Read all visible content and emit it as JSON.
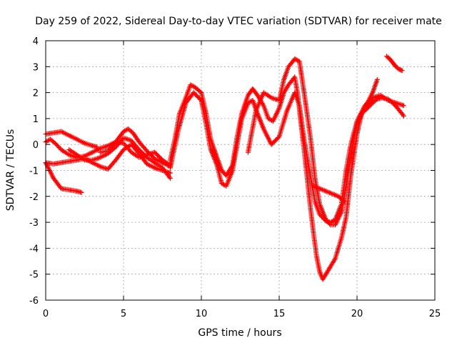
{
  "chart_data": {
    "type": "scatter",
    "title": "Day 259 of 2022, Sidereal Day-to-day VTEC variation (SDTVAR) for receiver mate",
    "xlabel": "GPS time / hours",
    "ylabel": "SDTVAR / TECUs",
    "xlim": [
      0,
      25
    ],
    "ylim": [
      -6,
      4
    ],
    "xticks": [
      "0",
      "5",
      "10",
      "15",
      "20",
      "25"
    ],
    "yticks": [
      "-6",
      "-5",
      "-4",
      "-3",
      "-2",
      "-1",
      "0",
      "1",
      "2",
      "3",
      "4"
    ],
    "grid": true,
    "marker": "plus",
    "color": "#ff0000",
    "series": [
      {
        "name": "s1",
        "x": [
          0.0,
          0.5,
          1.0,
          1.5,
          2.0,
          2.3
        ],
        "y": [
          -0.7,
          -1.3,
          -1.7,
          -1.75,
          -1.8,
          -1.85
        ]
      },
      {
        "name": "s2",
        "x": [
          0.0,
          0.5,
          1.0,
          1.5,
          2.0,
          2.5,
          3.0,
          3.3
        ],
        "y": [
          0.4,
          0.45,
          0.5,
          0.35,
          0.2,
          0.05,
          -0.05,
          -0.1
        ]
      },
      {
        "name": "s3",
        "x": [
          0.0,
          0.3,
          0.6,
          1.0,
          1.5,
          2.0,
          2.5,
          3.0,
          3.5,
          4.0,
          4.5,
          5.0,
          5.5,
          6.0,
          6.5,
          7.0,
          7.5,
          8.0
        ],
        "y": [
          0.1,
          0.2,
          0.05,
          -0.2,
          -0.4,
          -0.5,
          -0.45,
          -0.3,
          -0.15,
          -0.05,
          0.1,
          0.05,
          -0.3,
          -0.5,
          -0.4,
          -0.3,
          -0.6,
          -0.8
        ]
      },
      {
        "name": "s4",
        "x": [
          0.0,
          0.5,
          1.0,
          1.5,
          2.0,
          2.5,
          3.0,
          3.5,
          4.0,
          4.5,
          5.0,
          5.5,
          6.0,
          6.5,
          7.0,
          7.5,
          8.0
        ],
        "y": [
          -0.7,
          -0.75,
          -0.7,
          -0.65,
          -0.6,
          -0.55,
          -0.7,
          -0.85,
          -0.95,
          -0.6,
          -0.2,
          0.0,
          -0.35,
          -0.75,
          -0.9,
          -1.0,
          -1.1
        ]
      },
      {
        "name": "s5",
        "x": [
          1.5,
          2.0,
          2.5,
          3.0,
          3.5,
          4.0,
          4.5,
          5.0,
          5.5,
          6.0,
          6.5,
          7.0,
          7.5,
          8.0
        ],
        "y": [
          -0.2,
          -0.4,
          -0.6,
          -0.6,
          -0.5,
          -0.35,
          -0.1,
          0.25,
          0.15,
          -0.2,
          -0.5,
          -0.7,
          -0.9,
          -1.3
        ]
      },
      {
        "name": "s6",
        "x": [
          3.5,
          4.0,
          4.5,
          5.0,
          5.3,
          5.6,
          6.0,
          6.5,
          7.0,
          7.5,
          8.0
        ],
        "y": [
          -0.3,
          -0.25,
          0.1,
          0.5,
          0.6,
          0.45,
          0.1,
          -0.25,
          -0.55,
          -0.7,
          -0.85
        ]
      },
      {
        "name": "s7",
        "x": [
          8.0,
          8.3,
          8.6,
          9.0,
          9.3,
          9.6,
          10.0,
          10.3,
          10.6,
          11.0,
          11.3,
          11.6,
          12.0,
          12.3,
          12.6,
          13.0,
          13.3,
          13.6,
          14.0,
          14.3,
          14.6,
          15.0,
          15.3,
          15.6,
          16.0,
          16.2,
          16.4,
          16.6,
          16.8,
          17.0,
          17.2,
          17.4,
          17.6,
          17.8,
          18.0,
          18.3,
          18.6,
          19.0,
          19.3,
          19.6,
          20.0,
          20.3,
          20.6,
          21.0
        ],
        "y": [
          -0.6,
          0.2,
          1.2,
          1.8,
          2.3,
          2.2,
          2.0,
          1.2,
          0.2,
          -0.5,
          -1.0,
          -1.2,
          -0.8,
          0.3,
          1.2,
          1.9,
          2.15,
          1.9,
          1.5,
          1.0,
          0.9,
          1.4,
          2.0,
          2.3,
          2.6,
          1.9,
          0.8,
          -0.2,
          -1.3,
          -2.4,
          -3.4,
          -4.3,
          -4.9,
          -5.2,
          -5.0,
          -4.7,
          -4.4,
          -3.6,
          -2.8,
          -1.2,
          0.4,
          1.2,
          1.5,
          1.7
        ]
      },
      {
        "name": "s8",
        "x": [
          8.0,
          8.5,
          9.0,
          9.5,
          10.0,
          10.3,
          10.6,
          11.0,
          11.3,
          11.6,
          12.0,
          12.3,
          12.6,
          13.0,
          13.3,
          13.6,
          14.0,
          14.5,
          15.0,
          15.5,
          16.0,
          16.3,
          16.6,
          17.0,
          17.3,
          17.6,
          18.0,
          18.3,
          18.6,
          19.0,
          19.3,
          19.6,
          20.0,
          20.5,
          21.0,
          21.5,
          22.0,
          22.5,
          23.0
        ],
        "y": [
          -0.9,
          0.5,
          1.6,
          2.0,
          1.7,
          0.8,
          -0.2,
          -0.8,
          -1.5,
          -1.6,
          -1.0,
          0.0,
          1.0,
          1.6,
          1.7,
          1.2,
          0.6,
          0.0,
          0.3,
          1.3,
          2.0,
          1.5,
          0.2,
          -1.2,
          -2.2,
          -2.7,
          -2.95,
          -3.0,
          -2.9,
          -2.3,
          -1.0,
          0.0,
          0.9,
          1.5,
          1.8,
          1.9,
          1.7,
          1.6,
          1.5
        ]
      },
      {
        "name": "s9",
        "x": [
          13.0,
          13.5,
          14.0,
          14.5,
          15.0,
          15.3,
          15.6,
          16.0,
          16.3,
          16.6,
          17.0,
          17.3,
          17.6,
          18.0,
          18.3,
          18.6,
          19.0,
          19.3,
          19.6,
          20.0,
          20.5,
          21.0,
          21.3
        ],
        "y": [
          -0.3,
          1.3,
          2.0,
          1.8,
          1.7,
          2.5,
          3.0,
          3.3,
          3.2,
          2.0,
          0.3,
          -1.3,
          -2.3,
          -2.9,
          -3.1,
          -3.1,
          -2.6,
          -1.6,
          -0.4,
          0.8,
          1.4,
          2.0,
          2.5
        ]
      },
      {
        "name": "s10",
        "x": [
          17.2,
          17.6,
          18.0,
          18.4,
          18.8,
          19.2
        ],
        "y": [
          -1.6,
          -1.7,
          -1.8,
          -1.9,
          -2.0,
          -2.2
        ]
      },
      {
        "name": "s11",
        "x": [
          21.9,
          22.1,
          22.3,
          22.5,
          22.7,
          22.9
        ],
        "y": [
          3.4,
          3.3,
          3.15,
          3.0,
          2.9,
          2.85
        ]
      },
      {
        "name": "s12",
        "x": [
          20.5,
          21.0,
          21.3,
          21.6,
          22.0,
          22.3,
          22.6,
          23.0
        ],
        "y": [
          1.3,
          1.6,
          1.75,
          1.8,
          1.75,
          1.6,
          1.4,
          1.1
        ]
      }
    ]
  }
}
